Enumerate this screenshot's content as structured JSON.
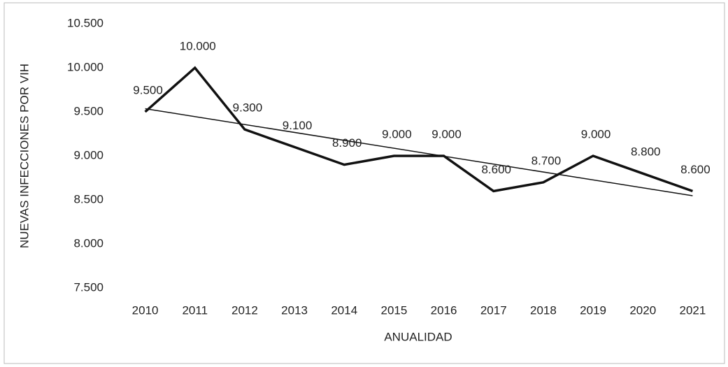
{
  "chart_data": {
    "type": "line",
    "y_label": "NUEVAS INFECCIONES POR VIH",
    "x_label": "ANUALIDAD",
    "categories": [
      "2010",
      "2011",
      "2012",
      "2013",
      "2014",
      "2015",
      "2016",
      "2017",
      "2018",
      "2019",
      "2020",
      "2021"
    ],
    "values": [
      9500,
      10000,
      9300,
      9100,
      8900,
      9000,
      9000,
      8600,
      8700,
      9000,
      8800,
      8600
    ],
    "value_labels": [
      "9.500",
      "10.000",
      "9.300",
      "9.100",
      "8.900",
      "9.000",
      "9.000",
      "8.600",
      "8.700",
      "9.000",
      "8.800",
      "8.600"
    ],
    "color": "#111111",
    "trendline": "linear",
    "ylim": [
      7500,
      10500
    ],
    "yticks": [
      {
        "value": 7500,
        "label": "7.500"
      },
      {
        "value": 8000,
        "label": "8.000"
      },
      {
        "value": 8500,
        "label": "8.500"
      },
      {
        "value": 9000,
        "label": "9.000"
      },
      {
        "value": 9500,
        "label": "9.500"
      },
      {
        "value": 10000,
        "label": "10.000"
      },
      {
        "value": 10500,
        "label": "10.500"
      }
    ],
    "grid": false
  }
}
